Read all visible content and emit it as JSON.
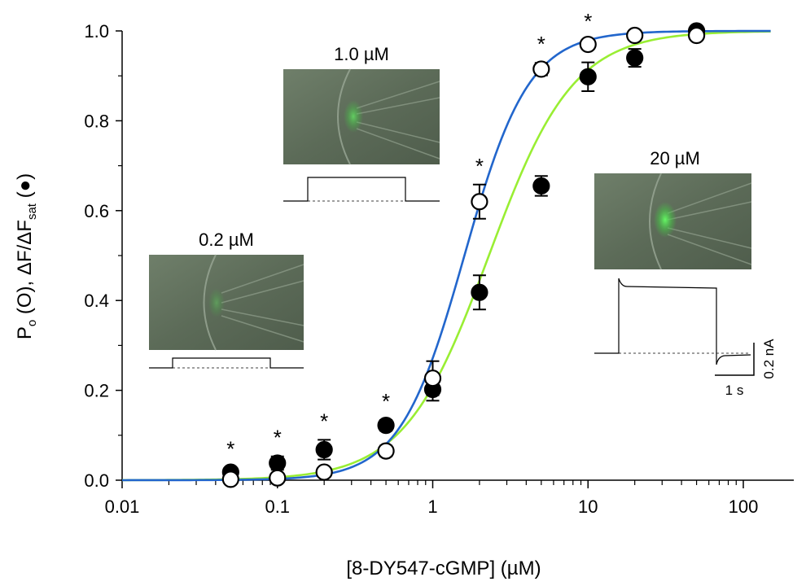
{
  "chart_data": {
    "type": "scatter",
    "xscale": "log",
    "xlim": [
      0.01,
      150
    ],
    "ylim": [
      0,
      1.0
    ],
    "xticks": [
      "0.01",
      "0.1",
      "1",
      "10",
      "100"
    ],
    "yticks": [
      "0.0",
      "0.2",
      "0.4",
      "0.6",
      "0.8",
      "1.0"
    ],
    "xlabel": "[8-DY547-cGMP] (µM)",
    "ylabel": {
      "p": "P",
      "o_sub": "o",
      "open": " (O), ΔF/ΔF",
      "sat_sub": "sat",
      "close": " (●)"
    },
    "series": [
      {
        "marker": "filled",
        "x": [
          0.05,
          0.1,
          0.2,
          0.5,
          1,
          2,
          5,
          10,
          20,
          50
        ],
        "y": [
          0.018,
          0.038,
          0.068,
          0.122,
          0.202,
          0.418,
          0.655,
          0.898,
          0.94,
          1.0
        ],
        "err": [
          0.01,
          0.015,
          0.022,
          0.012,
          0.025,
          0.038,
          0.022,
          0.032,
          0.02,
          0.01
        ],
        "fit": {
          "color": "#99ee33",
          "k": 2.3,
          "n": 1.6
        }
      },
      {
        "marker": "open",
        "x": [
          0.05,
          0.1,
          0.2,
          0.5,
          1,
          2,
          5,
          10,
          20,
          50
        ],
        "y": [
          0.002,
          0.005,
          0.018,
          0.065,
          0.227,
          0.62,
          0.915,
          0.97,
          0.99,
          0.99
        ],
        "err": [
          0.004,
          0.006,
          0.008,
          0.012,
          0.038,
          0.038,
          0.014,
          0.01,
          0.008,
          0.006
        ],
        "fit": {
          "color": "#2266cc",
          "k": 1.6,
          "n": 2.1
        }
      }
    ],
    "significance_marks": [
      {
        "x": 0.05,
        "label": "*"
      },
      {
        "x": 0.1,
        "label": "*"
      },
      {
        "x": 0.2,
        "label": "*"
      },
      {
        "x": 0.5,
        "label": "*"
      },
      {
        "x": 2,
        "label": "*"
      },
      {
        "x": 5,
        "label": "*"
      },
      {
        "x": 10,
        "label": "*"
      }
    ],
    "insets": [
      {
        "label": "0.2 µM",
        "glow": 0.35,
        "current_level": 0.3
      },
      {
        "label": "1.0 µM",
        "glow": 0.7,
        "current_level": 0.55
      },
      {
        "label": "20 µM",
        "glow": 1.0,
        "current_level": 1.0
      }
    ],
    "scale_bar": {
      "time": "1 s",
      "current": "0.2 nA"
    }
  }
}
